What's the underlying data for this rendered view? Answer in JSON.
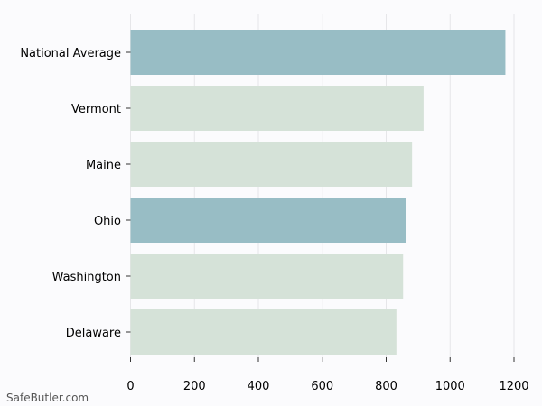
{
  "watermark": "SafeButler.com",
  "colors": {
    "background": "#fbfbfd",
    "highlight": "#98bdc5",
    "normal": "#d5e2d8",
    "grid": "#e6e6e9"
  },
  "chart_data": {
    "type": "bar",
    "orientation": "horizontal",
    "categories": [
      "National Average",
      "Vermont",
      "Maine",
      "Ohio",
      "Washington",
      "Delaware"
    ],
    "values": [
      1173,
      917,
      881,
      861,
      853,
      832
    ],
    "highlighted": [
      true,
      false,
      false,
      true,
      false,
      false
    ],
    "xlim": [
      0,
      1200
    ],
    "xticks": [
      0,
      200,
      400,
      600,
      800,
      1000,
      1200
    ],
    "xticklabels": [
      "0",
      "200",
      "400",
      "600",
      "800",
      "1000",
      "1200"
    ],
    "grid": "vertical",
    "title": "",
    "xlabel": "",
    "ylabel": ""
  }
}
